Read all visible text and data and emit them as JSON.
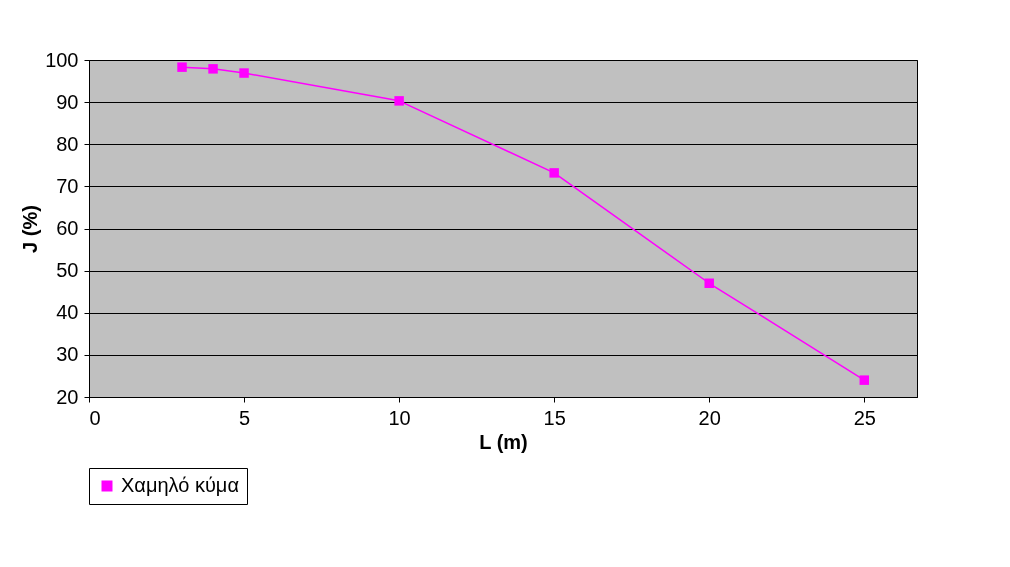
{
  "chart_data": {
    "type": "line",
    "xlabel": "L (m)",
    "ylabel": "J (%)",
    "x": [
      3,
      4,
      5,
      10,
      15,
      20,
      25
    ],
    "series": [
      {
        "name": "Χαμηλό κύμα",
        "color": "#ff00ff",
        "values": [
          98.3,
          97.9,
          96.9,
          90.3,
          73.2,
          47.0,
          24.0
        ]
      }
    ],
    "xlim": [
      0,
      26.7
    ],
    "xticks": [
      0,
      5,
      10,
      15,
      20,
      25
    ],
    "ylim": [
      20,
      100
    ],
    "yticks": [
      20,
      30,
      40,
      50,
      60,
      70,
      80,
      90,
      100
    ],
    "grid": "y",
    "legend": "bottom",
    "marker": "square",
    "line_style": "solid"
  }
}
